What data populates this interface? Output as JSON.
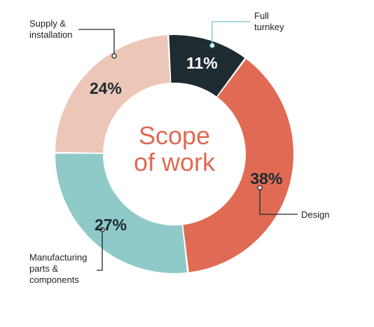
{
  "chart_data": {
    "type": "pie",
    "donut": true,
    "title": "Scope of work",
    "categories": [
      "Full turnkey",
      "Design",
      "Manufacturing parts & components",
      "Supply & installation"
    ],
    "values": [
      11,
      38,
      27,
      24
    ],
    "value_labels": [
      "11%",
      "38%",
      "27%",
      "24%"
    ],
    "callout_labels": [
      [
        "Full",
        "turnkey"
      ],
      [
        "Design"
      ],
      [
        "Manufacturing",
        "parts &",
        "components"
      ],
      [
        "Supply &",
        "installation"
      ]
    ],
    "colors": [
      "#1e2b31",
      "#e06a53",
      "#8fcac8",
      "#ecc6b7"
    ],
    "label_colors": [
      "#ffffff",
      "#1e2b31",
      "#1e2b31",
      "#1e2b31"
    ],
    "title_color": "#e06a53",
    "leader_colors": [
      "#79c6c8",
      "#1e2b31",
      "#1e2b31",
      "#1e2b31"
    ]
  }
}
